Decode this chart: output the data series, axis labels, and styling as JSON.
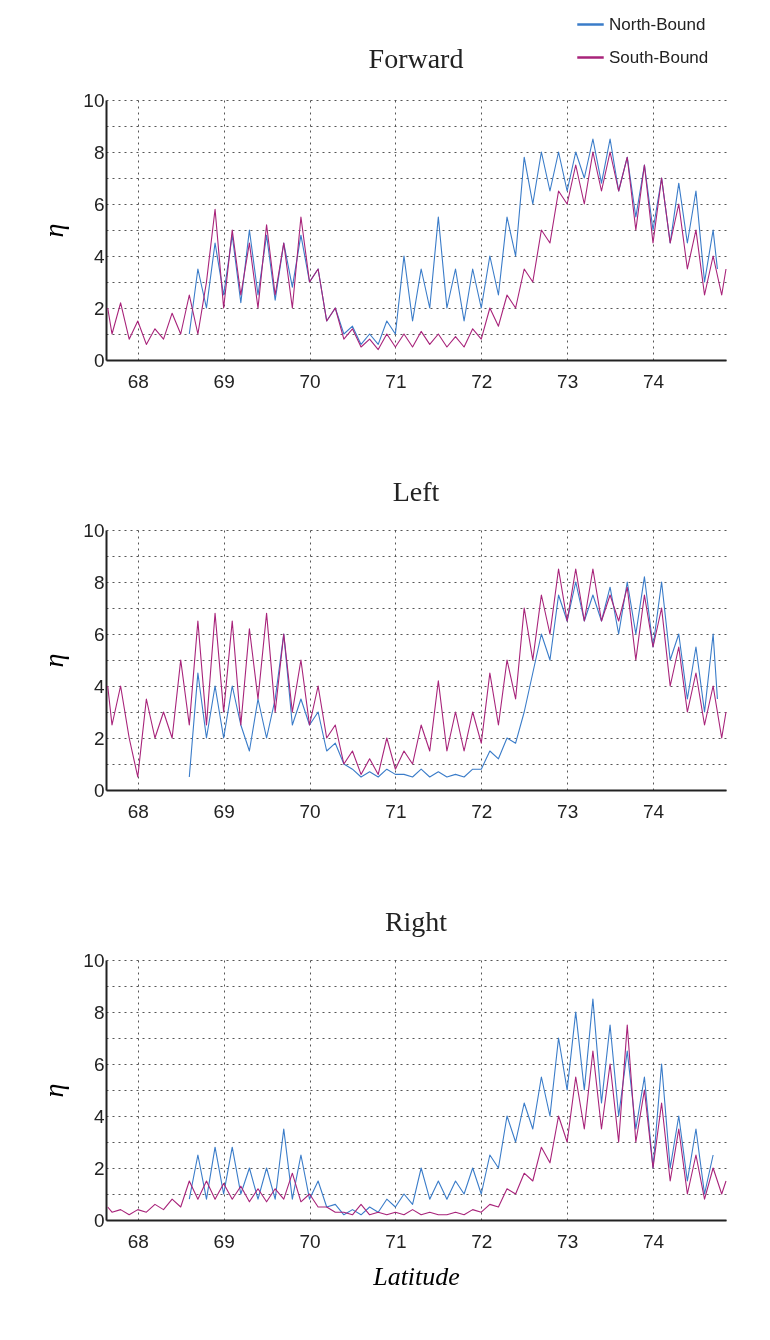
{
  "chart_data": [
    {
      "type": "line",
      "title": "Forward",
      "ylabel": "η",
      "xlim": [
        67.63,
        74.85
      ],
      "ylim": [
        0,
        10
      ],
      "xticks": [
        68,
        69,
        70,
        71,
        72,
        73,
        74
      ],
      "yticks": [
        0,
        {
          "value": 1,
          "label": null
        },
        2,
        {
          "value": 3,
          "label": null
        },
        4,
        {
          "value": 5,
          "label": null
        },
        6,
        {
          "value": 7,
          "label": null
        },
        8,
        {
          "value": 9,
          "label": null
        },
        10
      ],
      "grid": true,
      "legend": "top right",
      "series": [
        {
          "name": "North-Bound",
          "color": "#3a7cc9",
          "x": [
            68.6,
            68.7,
            68.8,
            68.9,
            69.0,
            69.1,
            69.2,
            69.3,
            69.4,
            69.5,
            69.6,
            69.7,
            69.8,
            69.9,
            70.0,
            70.1,
            70.2,
            70.3,
            70.4,
            70.5,
            70.6,
            70.7,
            70.8,
            70.9,
            71.0,
            71.1,
            71.2,
            71.3,
            71.4,
            71.5,
            71.6,
            71.7,
            71.8,
            71.9,
            72.0,
            72.1,
            72.2,
            72.3,
            72.4,
            72.5,
            72.6,
            72.7,
            72.8,
            72.9,
            73.0,
            73.1,
            73.2,
            73.3,
            73.4,
            73.5,
            73.6,
            73.7,
            73.8,
            73.9,
            74.0,
            74.1,
            74.2,
            74.3,
            74.4,
            74.5,
            74.6,
            74.7,
            74.75
          ],
          "values": [
            1.0,
            3.5,
            2.0,
            4.5,
            2.5,
            4.8,
            2.2,
            5.0,
            2.5,
            4.8,
            2.3,
            4.5,
            2.8,
            4.8,
            3.0,
            3.5,
            1.5,
            2.0,
            1.0,
            1.3,
            0.6,
            1.0,
            0.6,
            1.5,
            1.0,
            4.0,
            1.5,
            3.5,
            2.0,
            5.5,
            2.0,
            3.5,
            1.5,
            3.5,
            2.0,
            4.0,
            2.5,
            5.5,
            4.0,
            7.8,
            6.0,
            8.0,
            6.5,
            8.0,
            6.5,
            8.0,
            7.0,
            8.5,
            6.8,
            8.5,
            6.5,
            7.8,
            5.5,
            7.5,
            5.0,
            7.0,
            4.5,
            6.8,
            4.5,
            6.5,
            3.0,
            5.0,
            3.5
          ]
        },
        {
          "name": "South-Bound",
          "color": "#a8237a",
          "x": [
            67.65,
            67.7,
            67.8,
            67.9,
            68.0,
            68.1,
            68.2,
            68.3,
            68.4,
            68.5,
            68.6,
            68.7,
            68.8,
            68.9,
            69.0,
            69.1,
            69.2,
            69.3,
            69.4,
            69.5,
            69.6,
            69.7,
            69.8,
            69.9,
            70.0,
            70.1,
            70.2,
            70.3,
            70.4,
            70.5,
            70.6,
            70.7,
            70.8,
            70.9,
            71.0,
            71.1,
            71.2,
            71.3,
            71.4,
            71.5,
            71.6,
            71.7,
            71.8,
            71.9,
            72.0,
            72.1,
            72.2,
            72.3,
            72.4,
            72.5,
            72.6,
            72.7,
            72.8,
            72.9,
            73.0,
            73.1,
            73.2,
            73.3,
            73.4,
            73.5,
            73.6,
            73.7,
            73.8,
            73.9,
            74.0,
            74.1,
            74.2,
            74.3,
            74.4,
            74.5,
            74.6,
            74.7,
            74.8,
            74.85
          ],
          "values": [
            2.0,
            1.0,
            2.2,
            0.8,
            1.5,
            0.6,
            1.2,
            0.8,
            1.8,
            1.0,
            2.5,
            1.0,
            3.0,
            5.8,
            2.0,
            5.0,
            2.5,
            4.5,
            2.0,
            5.2,
            2.5,
            4.5,
            2.0,
            5.5,
            3.0,
            3.5,
            1.5,
            2.0,
            0.8,
            1.2,
            0.5,
            0.8,
            0.4,
            1.0,
            0.5,
            1.0,
            0.5,
            1.1,
            0.6,
            1.0,
            0.5,
            0.9,
            0.5,
            1.2,
            0.8,
            2.0,
            1.3,
            2.5,
            2.0,
            3.5,
            3.0,
            5.0,
            4.5,
            6.5,
            6.0,
            7.5,
            6.0,
            8.0,
            6.5,
            8.0,
            6.5,
            7.8,
            5.0,
            7.5,
            4.5,
            7.0,
            4.5,
            6.0,
            3.5,
            5.0,
            2.5,
            4.0,
            2.5,
            3.5
          ]
        }
      ]
    },
    {
      "type": "line",
      "title": "Left",
      "ylabel": "η",
      "xlim": [
        67.63,
        74.85
      ],
      "ylim": [
        0,
        10
      ],
      "xticks": [
        68,
        69,
        70,
        71,
        72,
        73,
        74
      ],
      "yticks": [
        0,
        {
          "value": 1,
          "label": null
        },
        2,
        {
          "value": 3,
          "label": null
        },
        4,
        {
          "value": 5,
          "label": null
        },
        6,
        {
          "value": 7,
          "label": null
        },
        8,
        {
          "value": 9,
          "label": null
        },
        10
      ],
      "grid": true,
      "series": [
        {
          "color": "#3a7cc9",
          "x": [
            68.6,
            68.7,
            68.8,
            68.9,
            69.0,
            69.1,
            69.2,
            69.3,
            69.4,
            69.5,
            69.6,
            69.7,
            69.8,
            69.9,
            70.0,
            70.1,
            70.2,
            70.3,
            70.4,
            70.5,
            70.6,
            70.7,
            70.8,
            70.9,
            71.0,
            71.1,
            71.2,
            71.3,
            71.4,
            71.5,
            71.6,
            71.7,
            71.8,
            71.9,
            72.0,
            72.1,
            72.2,
            72.3,
            72.4,
            72.5,
            72.6,
            72.7,
            72.8,
            72.9,
            73.0,
            73.1,
            73.2,
            73.3,
            73.4,
            73.5,
            73.6,
            73.7,
            73.8,
            73.9,
            74.0,
            74.1,
            74.2,
            74.3,
            74.4,
            74.5,
            74.6,
            74.7,
            74.75
          ],
          "values": [
            0.5,
            4.5,
            2.0,
            4.0,
            2.0,
            4.0,
            2.5,
            1.5,
            3.5,
            2.0,
            3.5,
            6.0,
            2.5,
            3.5,
            2.5,
            3.0,
            1.5,
            1.8,
            1.0,
            0.8,
            0.5,
            0.7,
            0.5,
            0.8,
            0.6,
            0.6,
            0.5,
            0.8,
            0.5,
            0.7,
            0.5,
            0.6,
            0.5,
            0.8,
            0.8,
            1.5,
            1.2,
            2.0,
            1.8,
            3.0,
            4.5,
            6.0,
            5.0,
            7.5,
            6.5,
            8.0,
            6.5,
            7.5,
            6.5,
            7.8,
            6.0,
            8.0,
            6.0,
            8.2,
            5.5,
            8.0,
            5.0,
            6.0,
            3.5,
            5.5,
            3.0,
            6.0,
            3.5
          ]
        },
        {
          "color": "#a8237a",
          "x": [
            67.65,
            67.7,
            67.8,
            67.9,
            68.0,
            68.1,
            68.2,
            68.3,
            68.4,
            68.5,
            68.6,
            68.7,
            68.8,
            68.9,
            69.0,
            69.1,
            69.2,
            69.3,
            69.4,
            69.5,
            69.6,
            69.7,
            69.8,
            69.9,
            70.0,
            70.1,
            70.2,
            70.3,
            70.4,
            70.5,
            70.6,
            70.7,
            70.8,
            70.9,
            71.0,
            71.1,
            71.2,
            71.3,
            71.4,
            71.5,
            71.6,
            71.7,
            71.8,
            71.9,
            72.0,
            72.1,
            72.2,
            72.3,
            72.4,
            72.5,
            72.6,
            72.7,
            72.8,
            72.9,
            73.0,
            73.1,
            73.2,
            73.3,
            73.4,
            73.5,
            73.6,
            73.7,
            73.8,
            73.9,
            74.0,
            74.1,
            74.2,
            74.3,
            74.4,
            74.5,
            74.6,
            74.7,
            74.8,
            74.85
          ],
          "values": [
            4.0,
            2.5,
            4.0,
            2.0,
            0.5,
            3.5,
            2.0,
            3.0,
            2.0,
            5.0,
            2.5,
            6.5,
            2.5,
            6.8,
            3.0,
            6.5,
            2.5,
            6.2,
            3.5,
            6.8,
            3.0,
            6.0,
            3.0,
            5.0,
            2.5,
            4.0,
            2.0,
            2.5,
            1.0,
            1.5,
            0.6,
            1.2,
            0.6,
            2.0,
            0.8,
            1.5,
            1.0,
            2.5,
            1.5,
            4.2,
            1.5,
            3.0,
            1.5,
            3.0,
            1.8,
            4.5,
            2.5,
            5.0,
            3.5,
            7.0,
            5.0,
            7.5,
            6.0,
            8.5,
            6.5,
            8.5,
            6.5,
            8.5,
            6.5,
            7.5,
            6.5,
            7.8,
            5.0,
            7.5,
            5.5,
            7.0,
            4.0,
            5.5,
            3.0,
            4.5,
            2.5,
            4.0,
            2.0,
            3.0
          ]
        }
      ]
    },
    {
      "type": "line",
      "title": "Right",
      "ylabel": "η",
      "xlabel": "Latitude",
      "xlim": [
        67.63,
        74.85
      ],
      "ylim": [
        0,
        10
      ],
      "xticks": [
        68,
        69,
        70,
        71,
        72,
        73,
        74
      ],
      "yticks": [
        0,
        {
          "value": 1,
          "label": null
        },
        2,
        {
          "value": 3,
          "label": null
        },
        4,
        {
          "value": 5,
          "label": null
        },
        6,
        {
          "value": 7,
          "label": null
        },
        8,
        {
          "value": 9,
          "label": null
        },
        10
      ],
      "grid": true,
      "series": [
        {
          "color": "#3a7cc9",
          "x": [
            68.6,
            68.7,
            68.8,
            68.9,
            69.0,
            69.1,
            69.2,
            69.3,
            69.4,
            69.5,
            69.6,
            69.7,
            69.8,
            69.9,
            70.0,
            70.1,
            70.2,
            70.3,
            70.4,
            70.5,
            70.6,
            70.7,
            70.8,
            70.9,
            71.0,
            71.1,
            71.2,
            71.3,
            71.4,
            71.5,
            71.6,
            71.7,
            71.8,
            71.9,
            72.0,
            72.1,
            72.2,
            72.3,
            72.4,
            72.5,
            72.6,
            72.7,
            72.8,
            72.9,
            73.0,
            73.1,
            73.2,
            73.3,
            73.4,
            73.5,
            73.6,
            73.7,
            73.8,
            73.9,
            74.0,
            74.1,
            74.2,
            74.3,
            74.4,
            74.5,
            74.6,
            74.7
          ],
          "values": [
            0.8,
            2.5,
            0.8,
            2.8,
            1.0,
            2.8,
            1.0,
            2.0,
            0.8,
            2.0,
            0.8,
            3.5,
            0.8,
            2.5,
            0.8,
            1.5,
            0.5,
            0.6,
            0.2,
            0.4,
            0.2,
            0.5,
            0.3,
            0.8,
            0.5,
            1.0,
            0.6,
            2.0,
            0.8,
            1.5,
            0.8,
            1.5,
            1.0,
            2.0,
            1.0,
            2.5,
            2.0,
            4.0,
            3.0,
            4.5,
            3.5,
            5.5,
            4.0,
            7.0,
            5.0,
            8.0,
            5.0,
            8.5,
            4.5,
            7.5,
            4.0,
            6.5,
            3.5,
            5.5,
            2.0,
            6.0,
            2.0,
            4.0,
            1.5,
            3.5,
            1.0,
            2.5
          ]
        },
        {
          "color": "#a8237a",
          "x": [
            67.65,
            67.7,
            67.8,
            67.9,
            68.0,
            68.1,
            68.2,
            68.3,
            68.4,
            68.5,
            68.6,
            68.7,
            68.8,
            68.9,
            69.0,
            69.1,
            69.2,
            69.3,
            69.4,
            69.5,
            69.6,
            69.7,
            69.8,
            69.9,
            70.0,
            70.1,
            70.2,
            70.3,
            70.4,
            70.5,
            70.6,
            70.7,
            70.8,
            70.9,
            71.0,
            71.1,
            71.2,
            71.3,
            71.4,
            71.5,
            71.6,
            71.7,
            71.8,
            71.9,
            72.0,
            72.1,
            72.2,
            72.3,
            72.4,
            72.5,
            72.6,
            72.7,
            72.8,
            72.9,
            73.0,
            73.1,
            73.2,
            73.3,
            73.4,
            73.5,
            73.6,
            73.7,
            73.8,
            73.9,
            74.0,
            74.1,
            74.2,
            74.3,
            74.4,
            74.5,
            74.6,
            74.7,
            74.8,
            74.85
          ],
          "values": [
            0.5,
            0.3,
            0.4,
            0.2,
            0.4,
            0.3,
            0.6,
            0.4,
            0.8,
            0.5,
            1.5,
            0.8,
            1.5,
            0.8,
            1.4,
            0.8,
            1.3,
            0.7,
            1.2,
            0.7,
            1.2,
            0.8,
            1.8,
            0.7,
            1.0,
            0.5,
            0.5,
            0.3,
            0.3,
            0.2,
            0.6,
            0.2,
            0.3,
            0.2,
            0.3,
            0.2,
            0.4,
            0.2,
            0.3,
            0.2,
            0.2,
            0.3,
            0.2,
            0.4,
            0.3,
            0.6,
            0.5,
            1.2,
            1.0,
            1.8,
            1.5,
            2.8,
            2.2,
            4.0,
            3.0,
            5.5,
            3.5,
            6.5,
            3.5,
            6.0,
            3.0,
            7.5,
            3.0,
            5.0,
            2.0,
            4.5,
            1.5,
            3.5,
            1.0,
            2.5,
            0.8,
            2.0,
            1.0,
            1.5
          ]
        }
      ]
    }
  ]
}
